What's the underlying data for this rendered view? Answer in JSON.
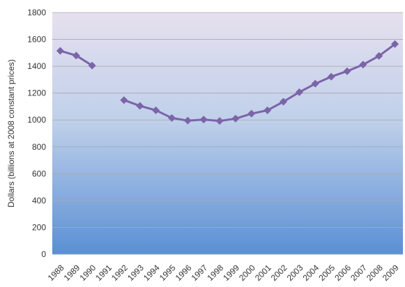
{
  "chart_data": {
    "type": "line",
    "title": "",
    "xlabel": "",
    "ylabel": "Dollars (billions at 2008 constant prices)",
    "x": [
      "1988",
      "1989",
      "1990",
      "1991",
      "1992",
      "1993",
      "1994",
      "1995",
      "1996",
      "1997",
      "1998",
      "1999",
      "2000",
      "2001",
      "2002",
      "2003",
      "2004",
      "2005",
      "2006",
      "2007",
      "2008",
      "2009"
    ],
    "series": [
      {
        "values": [
          1515,
          1480,
          1405,
          null,
          1148,
          1105,
          1072,
          1015,
          995,
          1003,
          993,
          1010,
          1047,
          1072,
          1136,
          1207,
          1270,
          1322,
          1363,
          1412,
          1477,
          1565
        ]
      }
    ],
    "ylim": [
      0,
      1800
    ],
    "yticks": [
      "0",
      "200",
      "400",
      "600",
      "800",
      "1000",
      "1200",
      "1400",
      "1600",
      "1800"
    ],
    "grid": true,
    "legend": "none",
    "colors": {
      "line": "#7b64a8",
      "gridline": "#a8a8a8",
      "plot_top": "#e6e0ef",
      "plot_middle": "#bfd0ea",
      "plot_bottom": "#5a8fd4"
    }
  }
}
